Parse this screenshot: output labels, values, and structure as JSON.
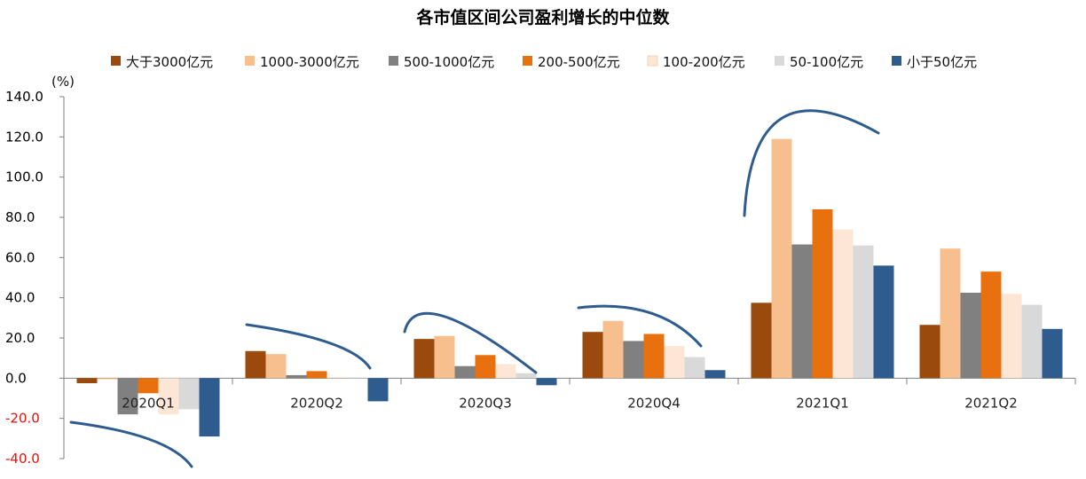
{
  "chart_data": {
    "type": "bar",
    "title": "各市值区间公司盈利增长的中位数",
    "unit_label": "(%)",
    "categories": [
      "2020Q1",
      "2020Q2",
      "2020Q3",
      "2020Q4",
      "2021Q1",
      "2021Q2"
    ],
    "series": [
      {
        "name": "大于3000亿元",
        "color": "#9A4A0C",
        "values": [
          -2.5,
          13.5,
          19.5,
          23.0,
          37.5,
          26.5
        ]
      },
      {
        "name": "1000-3000亿元",
        "color": "#F8BF8E",
        "values": [
          -0.5,
          12.0,
          21.0,
          28.5,
          119.0,
          64.5
        ]
      },
      {
        "name": "500-1000亿元",
        "color": "#808080",
        "values": [
          -18.0,
          1.5,
          6.0,
          18.5,
          66.5,
          42.5
        ]
      },
      {
        "name": "200-500亿元",
        "color": "#E8700F",
        "values": [
          -7.5,
          3.5,
          11.5,
          22.0,
          84.0,
          53.0
        ]
      },
      {
        "name": "100-200亿元",
        "color": "#FDE6D6",
        "values": [
          -18.0,
          0.5,
          7.0,
          16.0,
          74.0,
          42.0
        ]
      },
      {
        "name": "50-100亿元",
        "color": "#D9D9D9",
        "values": [
          -15.5,
          0.3,
          2.5,
          10.5,
          66.0,
          36.5
        ]
      },
      {
        "name": "小于50亿元",
        "color": "#2F5C8E",
        "values": [
          -29.0,
          -11.5,
          -3.5,
          4.0,
          56.0,
          24.5
        ]
      }
    ],
    "ylim": [
      -40,
      140
    ],
    "yticks": [
      140,
      120,
      100,
      80,
      60,
      40,
      20,
      0,
      -20,
      -40
    ],
    "ytick_labels": [
      "140.0",
      "120.0",
      "100.0",
      "80.0",
      "60.0",
      "40.0",
      "20.0",
      "0.0",
      "-20.0",
      "-40.0"
    ],
    "negative_tick_color": "#E8120C",
    "positive_tick_color": "#000000",
    "annotation_color": "#2F5C8E",
    "legend_position": "top",
    "grid": false
  }
}
